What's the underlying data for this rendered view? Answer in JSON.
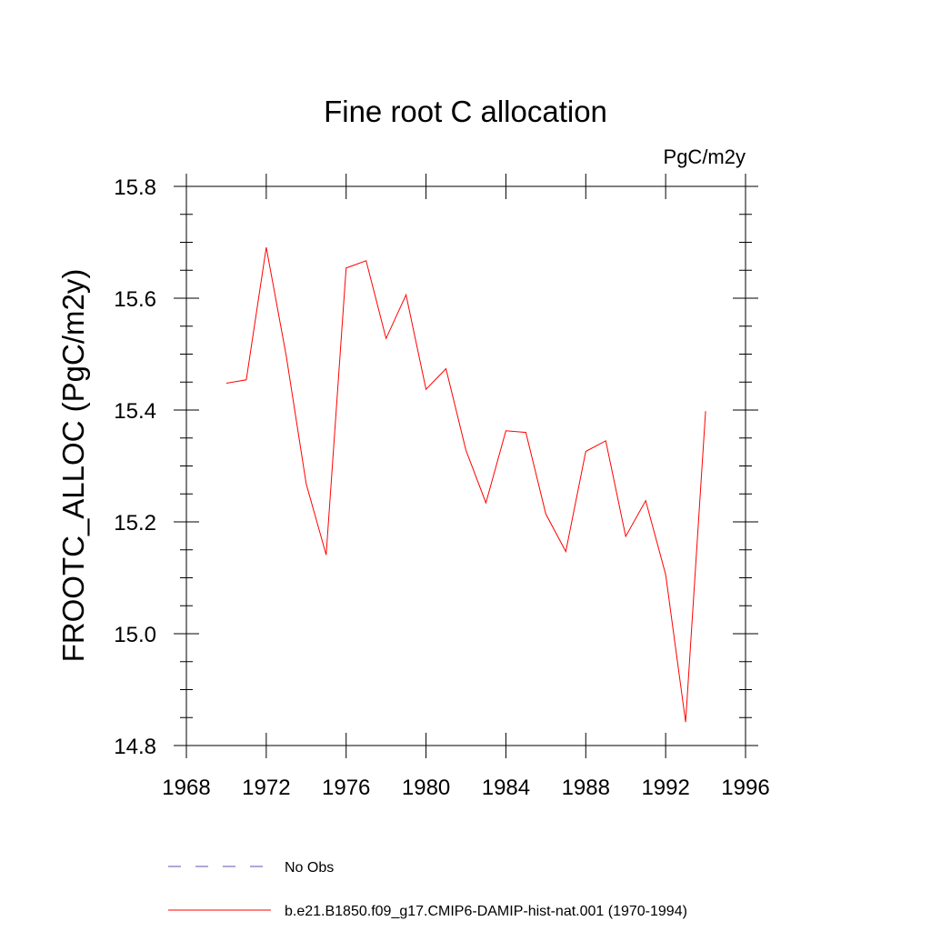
{
  "chart_data": {
    "type": "line",
    "title": "Fine root C allocation",
    "units": "PgC/m2y",
    "xlabel": "",
    "ylabel": "FROOTC_ALLOC  (PgC/m2y)",
    "xlim": [
      1968,
      1996
    ],
    "ylim": [
      14.8,
      15.8
    ],
    "x_ticks": [
      1968,
      1972,
      1976,
      1980,
      1984,
      1988,
      1992,
      1996
    ],
    "x_tick_labels": [
      "1968",
      "1972",
      "1976",
      "1980",
      "1984",
      "1988",
      "1992",
      "1996"
    ],
    "y_ticks": [
      14.8,
      15.0,
      15.2,
      15.4,
      15.6,
      15.8
    ],
    "y_tick_labels": [
      "14.8",
      "15.0",
      "15.2",
      "15.4",
      "15.6",
      "15.8"
    ],
    "grid": false,
    "legend_position": "bottom",
    "series": [
      {
        "name": "b.e21.B1850.f09_g17.CMIP6-DAMIP-hist-nat.001 (1970-1994)",
        "color": "#ff0000",
        "style": "solid",
        "x": [
          1970,
          1971,
          1972,
          1973,
          1974,
          1975,
          1976,
          1977,
          1978,
          1979,
          1980,
          1981,
          1982,
          1983,
          1984,
          1985,
          1986,
          1987,
          1988,
          1989,
          1990,
          1991,
          1992,
          1993,
          1994
        ],
        "y": [
          15.448,
          15.454,
          15.691,
          15.497,
          15.268,
          15.141,
          15.654,
          15.667,
          15.528,
          15.606,
          15.437,
          15.474,
          15.328,
          15.234,
          15.363,
          15.36,
          15.214,
          15.147,
          15.326,
          15.345,
          15.174,
          15.238,
          15.106,
          14.842,
          15.398
        ]
      }
    ],
    "legend": [
      {
        "label": "No Obs",
        "color": "#5a50b4",
        "style": "dashed"
      },
      {
        "label": "b.e21.B1850.f09_g17.CMIP6-DAMIP-hist-nat.001 (1970-1994)",
        "color": "#ff0000",
        "style": "solid"
      }
    ]
  }
}
